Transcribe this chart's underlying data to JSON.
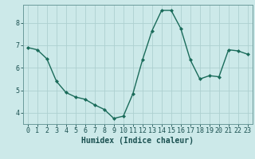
{
  "x": [
    0,
    1,
    2,
    3,
    4,
    5,
    6,
    7,
    8,
    9,
    10,
    11,
    12,
    13,
    14,
    15,
    16,
    17,
    18,
    19,
    20,
    21,
    22,
    23
  ],
  "y": [
    6.9,
    6.8,
    6.4,
    5.4,
    4.9,
    4.7,
    4.6,
    4.35,
    4.15,
    3.75,
    3.85,
    4.85,
    6.35,
    7.65,
    8.55,
    8.55,
    7.75,
    6.35,
    5.5,
    5.65,
    5.6,
    6.8,
    6.75,
    6.6
  ],
  "line_color": "#1a6b5a",
  "marker": "D",
  "markersize": 2.0,
  "linewidth": 1.0,
  "bg_color": "#cce9e9",
  "grid_color": "#aed0d0",
  "axes_color": "#6a9a9a",
  "xlabel": "Humidex (Indice chaleur)",
  "xlabel_fontsize": 7,
  "xlabel_color": "#1a5050",
  "tick_color": "#1a5050",
  "tick_fontsize": 6,
  "ylim": [
    3.5,
    8.8
  ],
  "xlim": [
    -0.5,
    23.5
  ],
  "yticks": [
    4,
    5,
    6,
    7,
    8
  ],
  "xticks": [
    0,
    1,
    2,
    3,
    4,
    5,
    6,
    7,
    8,
    9,
    10,
    11,
    12,
    13,
    14,
    15,
    16,
    17,
    18,
    19,
    20,
    21,
    22,
    23
  ]
}
